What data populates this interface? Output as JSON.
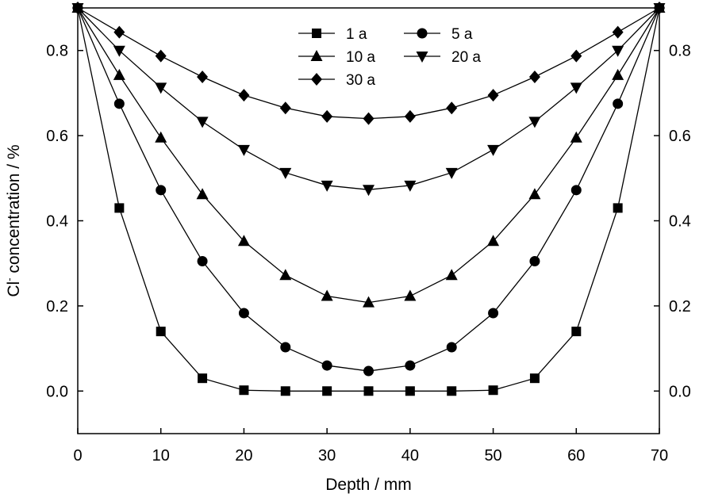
{
  "chart_data": {
    "type": "line",
    "xlabel": "Depth / mm",
    "ylabel_main": "Cl",
    "ylabel_sup": "-",
    "ylabel_rest": " concentration / %",
    "xlim": [
      0,
      70
    ],
    "ylim": [
      -0.1,
      0.9
    ],
    "xticks": [
      0,
      10,
      20,
      30,
      40,
      50,
      60,
      70
    ],
    "yticks": [
      0.0,
      0.2,
      0.4,
      0.6,
      0.8
    ],
    "xtick_labels": [
      "0",
      "10",
      "20",
      "30",
      "40",
      "50",
      "60",
      "70"
    ],
    "ytick_labels": [
      "0.0",
      "0.2",
      "0.4",
      "0.6",
      "0.8"
    ],
    "grid": false,
    "legend_position": "top-center",
    "x": [
      0,
      5,
      10,
      15,
      20,
      25,
      30,
      35,
      40,
      45,
      50,
      55,
      60,
      65,
      70
    ],
    "series": [
      {
        "name": "1 a",
        "marker": "square",
        "values": [
          0.9,
          0.43,
          0.14,
          0.03,
          0.002,
          0.0,
          0.0,
          0.0,
          0.0,
          0.0,
          0.002,
          0.03,
          0.14,
          0.43,
          0.9
        ]
      },
      {
        "name": "5 a",
        "marker": "circle",
        "values": [
          0.9,
          0.675,
          0.472,
          0.305,
          0.183,
          0.103,
          0.06,
          0.047,
          0.06,
          0.103,
          0.183,
          0.305,
          0.472,
          0.675,
          0.9
        ]
      },
      {
        "name": "10 a",
        "marker": "triangle-up",
        "values": [
          0.9,
          0.742,
          0.595,
          0.462,
          0.352,
          0.272,
          0.223,
          0.208,
          0.223,
          0.272,
          0.352,
          0.462,
          0.595,
          0.742,
          0.9
        ]
      },
      {
        "name": "20 a",
        "marker": "triangle-down",
        "values": [
          0.9,
          0.8,
          0.713,
          0.633,
          0.567,
          0.513,
          0.483,
          0.473,
          0.483,
          0.513,
          0.567,
          0.633,
          0.713,
          0.8,
          0.9
        ]
      },
      {
        "name": "30 a",
        "marker": "diamond",
        "values": [
          0.9,
          0.843,
          0.787,
          0.738,
          0.695,
          0.665,
          0.645,
          0.64,
          0.645,
          0.665,
          0.695,
          0.738,
          0.787,
          0.843,
          0.9
        ]
      }
    ]
  }
}
